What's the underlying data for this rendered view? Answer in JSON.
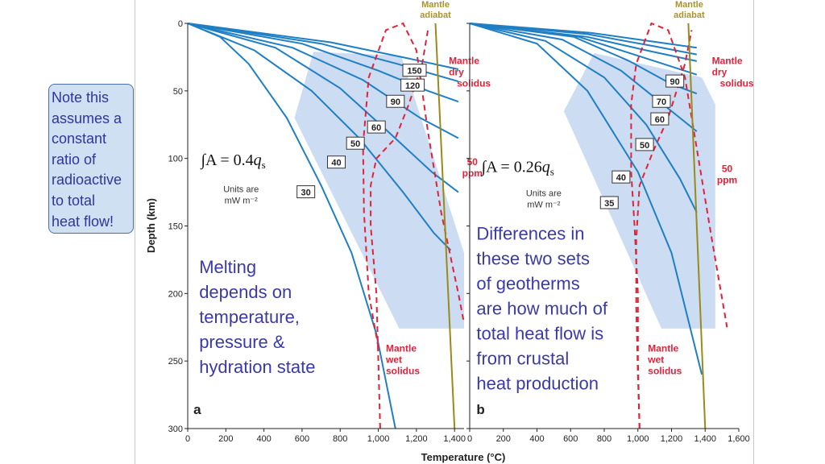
{
  "note": {
    "lines": [
      "Note this",
      "assumes a",
      "constant",
      "ratio of",
      "radioactive",
      "to total",
      "heat flow!"
    ]
  },
  "colors": {
    "geotherm": "#1f7fc4",
    "solidus": "#e0223a",
    "adiabat": "#9a8a1a",
    "adiabat_label": "#a8922a",
    "field": "#c3d6f0",
    "annotation": "#3a3aa6",
    "axis": "#222222"
  },
  "chart_data": [
    {
      "type": "line",
      "panel_label": "a",
      "xlabel": "Temperature (°C)",
      "ylabel": "Depth (km)",
      "xlim": [
        0,
        1450
      ],
      "ylim": [
        0,
        300
      ],
      "y_inverted": true,
      "xticks": [
        0,
        200,
        400,
        600,
        800,
        1000,
        1200,
        1400
      ],
      "xtick_labels": [
        "0",
        "200",
        "400",
        "600",
        "800",
        "1,000",
        "1,200",
        "1,400"
      ],
      "yticks": [
        0,
        50,
        100,
        150,
        200,
        250,
        300
      ],
      "ytick_labels": [
        "0",
        "50",
        "100",
        "150",
        "200",
        "250",
        "300"
      ],
      "formula": {
        "prefix": "∫A = 0.4",
        "q": "q",
        "sub": "s"
      },
      "units_lines": [
        "Units are",
        "mW m⁻²"
      ],
      "annotation_lines": [
        "Melting",
        "depends on",
        "temperature,",
        "pressure &",
        "hydration state"
      ],
      "adiabat_label_lines": [
        "Mantle",
        "adiabat"
      ],
      "dry_solidus_label_lines": [
        "Mantle",
        "dry",
        "solidus"
      ],
      "ppm_label_lines": [
        "50",
        "ppm"
      ],
      "wet_solidus_label_lines": [
        "Mantle",
        "wet",
        "solidus"
      ],
      "field_polygon": [
        [
          660,
          21
        ],
        [
          1120,
          24
        ],
        [
          1450,
          170
        ],
        [
          1450,
          226
        ],
        [
          1110,
          226
        ],
        [
          560,
          70
        ]
      ],
      "geotherms": [
        {
          "label": "30",
          "points": [
            [
              0,
              0
            ],
            [
              170,
              10
            ],
            [
              320,
              30
            ],
            [
              520,
              70
            ],
            [
              700,
              120
            ],
            [
              860,
              170
            ],
            [
              990,
              230
            ],
            [
              1090,
              300
            ]
          ],
          "label_at": [
            620,
            125
          ]
        },
        {
          "label": "40",
          "points": [
            [
              0,
              0
            ],
            [
              350,
              20
            ],
            [
              650,
              50
            ],
            [
              900,
              85
            ],
            [
              1130,
              125
            ],
            [
              1290,
              155
            ],
            [
              1380,
              168
            ]
          ],
          "label_at": [
            780,
            103
          ]
        },
        {
          "label": "50",
          "points": [
            [
              0,
              0
            ],
            [
              460,
              18
            ],
            [
              800,
              48
            ],
            [
              1050,
              80
            ],
            [
              1280,
              110
            ],
            [
              1420,
              125
            ]
          ],
          "label_at": [
            880,
            89
          ]
        },
        {
          "label": "60",
          "points": [
            [
              0,
              0
            ],
            [
              550,
              18
            ],
            [
              920,
              42
            ],
            [
              1220,
              70
            ],
            [
              1420,
              85
            ]
          ],
          "label_at": [
            990,
            77
          ]
        },
        {
          "label": "90",
          "points": [
            [
              0,
              0
            ],
            [
              600,
              15
            ],
            [
              1000,
              35
            ],
            [
              1260,
              50
            ],
            [
              1420,
              58
            ]
          ],
          "label_at": [
            1090,
            58
          ]
        },
        {
          "label": "120",
          "points": [
            [
              0,
              0
            ],
            [
              700,
              15
            ],
            [
              1100,
              30
            ],
            [
              1420,
              43
            ]
          ],
          "label_at": [
            1180,
            46
          ]
        },
        {
          "label": "150",
          "points": [
            [
              0,
              0
            ],
            [
              750,
              14
            ],
            [
              1160,
              26
            ],
            [
              1420,
              34
            ]
          ],
          "label_at": [
            1190,
            35
          ]
        }
      ],
      "adiabat_points": [
        [
          1300,
          0
        ],
        [
          1400,
          300
        ]
      ],
      "dry_solidus_points": [
        [
          1000,
          240
        ],
        [
          950,
          200
        ],
        [
          925,
          140
        ],
        [
          920,
          90
        ],
        [
          950,
          40
        ],
        [
          1040,
          5
        ],
        [
          1130,
          0
        ],
        [
          1200,
          20
        ],
        [
          1260,
          80
        ],
        [
          1330,
          140
        ],
        [
          1420,
          200
        ],
        [
          1450,
          222
        ]
      ],
      "wet_solidus_points": [
        [
          1010,
          300
        ],
        [
          1000,
          250
        ],
        [
          990,
          200
        ],
        [
          960,
          150
        ],
        [
          960,
          120
        ],
        [
          990,
          100
        ],
        [
          1090,
          85
        ],
        [
          1160,
          60
        ],
        [
          1230,
          30
        ],
        [
          1260,
          5
        ]
      ],
      "boxed_label_pos": {
        "formula": [
          70,
          105
        ],
        "units": [
          280,
          125
        ],
        "annotation": [
          60,
          185
        ],
        "adiabat_label": [
          1300,
          0
        ],
        "dry_label": [
          1370,
          30
        ],
        "ppm_label": [
          1440,
          105
        ],
        "wet_label": [
          1040,
          243
        ]
      },
      "panel_label_pos": [
        30,
        287
      ]
    },
    {
      "type": "line",
      "panel_label": "b",
      "xlabel": "Temperature (°C)",
      "ylabel": "Depth (km)",
      "xlim": [
        0,
        1600
      ],
      "ylim": [
        0,
        300
      ],
      "y_inverted": true,
      "xticks": [
        0,
        200,
        400,
        600,
        800,
        1000,
        1200,
        1400,
        1600
      ],
      "xtick_labels": [
        "0",
        "200",
        "400",
        "600",
        "800",
        "1,000",
        "1,200",
        "1,400",
        "1,600"
      ],
      "yticks": [
        0,
        50,
        100,
        150,
        200,
        250,
        300
      ],
      "ytick_labels": [
        "",
        "",
        "",
        "",
        "",
        "",
        ""
      ],
      "formula": {
        "prefix": "∫A = 0.26",
        "q": "q",
        "sub": "s"
      },
      "units_lines": [
        "Units are",
        "mW m⁻²"
      ],
      "annotation_lines": [
        "Differences in",
        "these two sets",
        "of geotherms",
        "are how much of",
        "total heat flow is",
        "from crustal",
        "heat production"
      ],
      "adiabat_label_lines": [
        "Mantle",
        "adiabat"
      ],
      "dry_solidus_label_lines": [
        "Mantle",
        "dry",
        "solidus"
      ],
      "ppm_label_lines": [
        "50",
        "ppm"
      ],
      "wet_solidus_label_lines": [
        "Mantle",
        "wet",
        "solidus"
      ],
      "field_polygon": [
        [
          740,
          22
        ],
        [
          1380,
          40
        ],
        [
          1460,
          60
        ],
        [
          1460,
          226
        ],
        [
          1140,
          226
        ],
        [
          560,
          65
        ]
      ],
      "geotherms": [
        {
          "label": "35",
          "points": [
            [
              0,
              0
            ],
            [
              400,
              15
            ],
            [
              700,
              50
            ],
            [
              1000,
              110
            ],
            [
              1200,
              170
            ],
            [
              1380,
              260
            ]
          ],
          "label_at": [
            830,
            133
          ]
        },
        {
          "label": "40",
          "points": [
            [
              0,
              0
            ],
            [
              450,
              13
            ],
            [
              800,
              40
            ],
            [
              1050,
              75
            ],
            [
              1250,
              115
            ],
            [
              1350,
              140
            ]
          ],
          "label_at": [
            900,
            114
          ]
        },
        {
          "label": "50",
          "points": [
            [
              0,
              0
            ],
            [
              550,
              12
            ],
            [
              900,
              35
            ],
            [
              1150,
              60
            ],
            [
              1350,
              80
            ]
          ],
          "label_at": [
            1040,
            90
          ]
        },
        {
          "label": "60",
          "points": [
            [
              0,
              0
            ],
            [
              620,
              10
            ],
            [
              950,
              28
            ],
            [
              1200,
              45
            ],
            [
              1350,
              52
            ]
          ],
          "label_at": [
            1130,
            71
          ]
        },
        {
          "label": "70",
          "points": [
            [
              0,
              0
            ],
            [
              650,
              10
            ],
            [
              1000,
              24
            ],
            [
              1350,
              38
            ]
          ],
          "label_at": [
            1140,
            58
          ]
        },
        {
          "label": "90",
          "points": [
            [
              0,
              0
            ],
            [
              700,
              10
            ],
            [
              1050,
              20
            ],
            [
              1350,
              28
            ]
          ],
          "label_at": [
            1220,
            43
          ]
        },
        {
          "label": "",
          "points": [
            [
              0,
              0
            ],
            [
              700,
              8
            ],
            [
              1100,
              17
            ],
            [
              1350,
              23
            ]
          ],
          "label_at": null
        },
        {
          "label": "",
          "points": [
            [
              0,
              0
            ],
            [
              720,
              7
            ],
            [
              1120,
              14
            ],
            [
              1350,
              18
            ]
          ],
          "label_at": null
        }
      ],
      "adiabat_points": [
        [
          1300,
          0
        ],
        [
          1400,
          300
        ]
      ],
      "dry_solidus_points": [
        [
          1010,
          300
        ],
        [
          1000,
          250
        ],
        [
          1000,
          200
        ],
        [
          980,
          150
        ],
        [
          960,
          110
        ],
        [
          960,
          60
        ],
        [
          990,
          30
        ],
        [
          1080,
          0
        ],
        [
          1180,
          5
        ],
        [
          1280,
          40
        ],
        [
          1360,
          100
        ],
        [
          1440,
          160
        ],
        [
          1530,
          225
        ]
      ],
      "wet_solidus_points": [
        [
          1010,
          300
        ],
        [
          1000,
          260
        ],
        [
          990,
          210
        ],
        [
          990,
          160
        ],
        [
          1010,
          120
        ],
        [
          1090,
          95
        ],
        [
          1180,
          70
        ],
        [
          1280,
          30
        ],
        [
          1320,
          5
        ]
      ],
      "boxed_label_pos": {
        "formula": [
          70,
          110
        ],
        "units": [
          440,
          128
        ],
        "annotation": [
          40,
          160
        ],
        "adiabat_label": [
          1305,
          0
        ],
        "dry_label": [
          1440,
          30
        ],
        "ppm_label": [
          1470,
          110
        ],
        "wet_label": [
          1060,
          243
        ]
      },
      "panel_label_pos": [
        40,
        287
      ]
    }
  ]
}
